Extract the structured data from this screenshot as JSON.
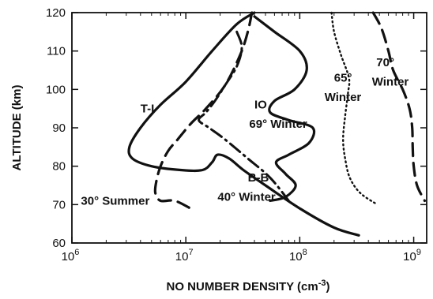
{
  "chart_data": {
    "type": "line",
    "title": "",
    "xlabel": "NO NUMBER DENSITY (cm",
    "xlabel_sup": "-3",
    "xlabel_suffix": ")",
    "ylabel": "ALTITUDE (km)",
    "xscale": "log",
    "xlim": [
      1000000,
      1300000000
    ],
    "ylim": [
      60,
      120
    ],
    "x_ticks": [
      {
        "value": 1000000,
        "base": "10",
        "exp": "6"
      },
      {
        "value": 10000000,
        "base": "10",
        "exp": "7"
      },
      {
        "value": 100000000,
        "base": "10",
        "exp": "8"
      },
      {
        "value": 1000000000,
        "base": "10",
        "exp": "9"
      }
    ],
    "y_ticks": [
      60,
      70,
      80,
      90,
      100,
      110,
      120
    ],
    "grid": false,
    "legend": "none",
    "series": [
      {
        "name": "T-I",
        "style": "solid",
        "points": [
          [
            40000000,
            120
          ],
          [
            28000000,
            117
          ],
          [
            17000000,
            110
          ],
          [
            10000000,
            102
          ],
          [
            6000000,
            96
          ],
          [
            4000000,
            90
          ],
          [
            3200000,
            85
          ],
          [
            3400000,
            82
          ],
          [
            5000000,
            80
          ],
          [
            9000000,
            79
          ],
          [
            14000000,
            79
          ],
          [
            17000000,
            81
          ],
          [
            19000000,
            83
          ],
          [
            24000000,
            82
          ],
          [
            32000000,
            79
          ],
          [
            50000000,
            75
          ],
          [
            100000000,
            69
          ],
          [
            200000000,
            64
          ],
          [
            330000000,
            62
          ]
        ]
      },
      {
        "name": "IO 69° Winter",
        "style": "solid",
        "points": [
          [
            40000000,
            119
          ],
          [
            60000000,
            115
          ],
          [
            100000000,
            110
          ],
          [
            115000000,
            105
          ],
          [
            90000000,
            100
          ],
          [
            60000000,
            97
          ],
          [
            55000000,
            94
          ],
          [
            80000000,
            92
          ],
          [
            130000000,
            90
          ],
          [
            120000000,
            86
          ],
          [
            80000000,
            83
          ],
          [
            62000000,
            81
          ],
          [
            75000000,
            78
          ],
          [
            92000000,
            75
          ],
          [
            75000000,
            72
          ],
          [
            55000000,
            71
          ]
        ]
      },
      {
        "name": "30° Summer",
        "style": "dashed",
        "points": [
          [
            38000000,
            120
          ],
          [
            35000000,
            115
          ],
          [
            30000000,
            109
          ],
          [
            22000000,
            101
          ],
          [
            15000000,
            95
          ],
          [
            11000000,
            91
          ],
          [
            8500000,
            87
          ],
          [
            7000000,
            84
          ],
          [
            6000000,
            80
          ],
          [
            5500000,
            76
          ],
          [
            5400000,
            73
          ],
          [
            6000000,
            71
          ],
          [
            8000000,
            71
          ],
          [
            11000000,
            69
          ]
        ]
      },
      {
        "name": "B-B 40° Winter",
        "style": "dashdot",
        "points": [
          [
            28000000,
            115
          ],
          [
            31000000,
            111
          ],
          [
            28000000,
            106
          ],
          [
            22000000,
            101
          ],
          [
            18000000,
            97
          ],
          [
            15000000,
            94
          ],
          [
            13000000,
            92
          ],
          [
            16000000,
            90
          ],
          [
            22000000,
            87
          ],
          [
            35000000,
            82
          ],
          [
            55000000,
            77
          ],
          [
            80000000,
            71
          ]
        ]
      },
      {
        "name": "65° Winter",
        "style": "dotted",
        "points": [
          [
            190000000,
            120
          ],
          [
            200000000,
            115
          ],
          [
            230000000,
            109
          ],
          [
            270000000,
            103
          ],
          [
            265000000,
            99
          ],
          [
            250000000,
            93
          ],
          [
            240000000,
            87
          ],
          [
            250000000,
            82
          ],
          [
            275000000,
            77
          ],
          [
            340000000,
            73
          ],
          [
            480000000,
            70
          ]
        ]
      },
      {
        "name": "70° Winter",
        "style": "dashed",
        "points": [
          [
            440000000,
            120
          ],
          [
            520000000,
            116
          ],
          [
            600000000,
            110
          ],
          [
            660000000,
            105
          ],
          [
            800000000,
            100
          ],
          [
            920000000,
            95
          ],
          [
            970000000,
            90
          ],
          [
            980000000,
            85
          ],
          [
            1000000000,
            80
          ],
          [
            1070000000,
            75
          ],
          [
            1250000000,
            71
          ]
        ]
      }
    ],
    "labels": [
      {
        "text": "T-I",
        "x": 4000000,
        "y": 94
      },
      {
        "text": "IO",
        "x": 40000000,
        "y": 95
      },
      {
        "text": "69° Winter",
        "x": 36000000,
        "y": 90
      },
      {
        "text": "30° Summer",
        "x": 1200000,
        "y": 70
      },
      {
        "text": "B-B",
        "x": 35000000,
        "y": 76
      },
      {
        "text": "40° Winter",
        "x": 19000000,
        "y": 71
      },
      {
        "text": "65°",
        "x": 200000000,
        "y": 102
      },
      {
        "text": "Winter",
        "x": 165000000,
        "y": 97
      },
      {
        "text": "70°",
        "x": 470000000,
        "y": 106
      },
      {
        "text": "Winter",
        "x": 430000000,
        "y": 101
      }
    ]
  }
}
